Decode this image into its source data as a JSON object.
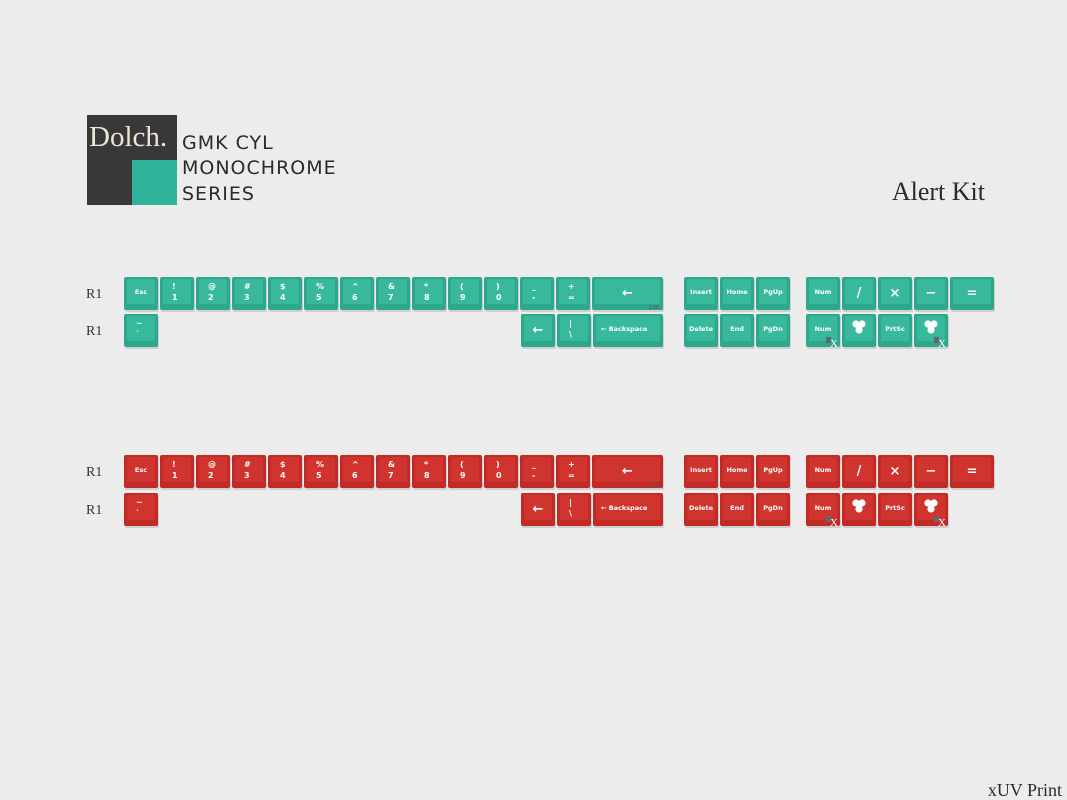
{
  "header": {
    "brand": "Dolch.",
    "lines": [
      "GMK CYL",
      "MONOCHROME",
      "SERIES"
    ],
    "kit": "Alert Kit"
  },
  "footer": "xUV Print",
  "kits": [
    {
      "color": "#2ea88d",
      "top_color": "#38b99c",
      "rows": [
        {
          "label": "R1",
          "keys": [
            {
              "legend": "Esc"
            },
            {
              "top": "!",
              "bottom": "1"
            },
            {
              "top": "@",
              "bottom": "2"
            },
            {
              "top": "#",
              "bottom": "3"
            },
            {
              "top": "$",
              "bottom": "4"
            },
            {
              "top": "%",
              "bottom": "5"
            },
            {
              "top": "^",
              "bottom": "6"
            },
            {
              "top": "&",
              "bottom": "7"
            },
            {
              "top": "*",
              "bottom": "8"
            },
            {
              "top": "(",
              "bottom": "9"
            },
            {
              "top": ")",
              "bottom": "0"
            },
            {
              "top": "_",
              "bottom": "-"
            },
            {
              "top": "+",
              "bottom": "="
            },
            {
              "legend": "←",
              "note": "2.00"
            },
            {
              "legend": "Insert"
            },
            {
              "legend": "Home"
            },
            {
              "legend": "PgUp"
            },
            {
              "legend": "Num"
            },
            {
              "legend": "/"
            },
            {
              "legend": "×"
            },
            {
              "legend": "−"
            },
            {
              "legend": "="
            }
          ]
        },
        {
          "label": "R1",
          "keys": [
            {
              "top": "~",
              "bottom": "`"
            },
            {
              "legend": "←"
            },
            {
              "top": "|",
              "bottom": "\\"
            },
            {
              "legend": "← Backspace"
            },
            {
              "legend": "Delete"
            },
            {
              "legend": "End"
            },
            {
              "legend": "PgDn"
            },
            {
              "legend": "Num",
              "sub": "X"
            },
            {
              "icon": "clover"
            },
            {
              "legend": "PrtSc"
            },
            {
              "icon": "clover",
              "sub": "X"
            }
          ]
        }
      ]
    },
    {
      "color": "#c22a26",
      "top_color": "#d0342e",
      "rows": [
        {
          "label": "R1",
          "keys": [
            {
              "legend": "Esc"
            },
            {
              "top": "!",
              "bottom": "1"
            },
            {
              "top": "@",
              "bottom": "2"
            },
            {
              "top": "#",
              "bottom": "3"
            },
            {
              "top": "$",
              "bottom": "4"
            },
            {
              "top": "%",
              "bottom": "5"
            },
            {
              "top": "^",
              "bottom": "6"
            },
            {
              "top": "&",
              "bottom": "7"
            },
            {
              "top": "*",
              "bottom": "8"
            },
            {
              "top": "(",
              "bottom": "9"
            },
            {
              "top": ")",
              "bottom": "0"
            },
            {
              "top": "_",
              "bottom": "-"
            },
            {
              "top": "+",
              "bottom": "="
            },
            {
              "legend": "←",
              "note": "2.00"
            },
            {
              "legend": "Insert"
            },
            {
              "legend": "Home"
            },
            {
              "legend": "PgUp"
            },
            {
              "legend": "Num"
            },
            {
              "legend": "/"
            },
            {
              "legend": "×"
            },
            {
              "legend": "−"
            },
            {
              "legend": "="
            }
          ]
        },
        {
          "label": "R1",
          "keys": [
            {
              "top": "~",
              "bottom": "`"
            },
            {
              "legend": "←"
            },
            {
              "top": "|",
              "bottom": "\\"
            },
            {
              "legend": "← Backspace"
            },
            {
              "legend": "Delete"
            },
            {
              "legend": "End"
            },
            {
              "legend": "PgDn"
            },
            {
              "legend": "Num",
              "sub": "X"
            },
            {
              "icon": "clover"
            },
            {
              "legend": "PrtSc"
            },
            {
              "icon": "clover",
              "sub": "X"
            }
          ]
        }
      ]
    }
  ]
}
